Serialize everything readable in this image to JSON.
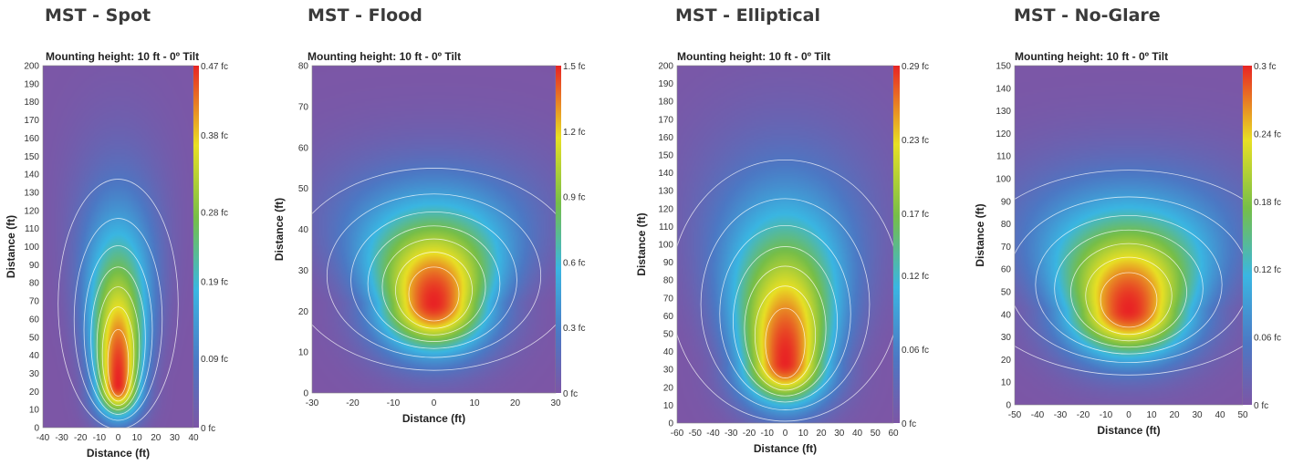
{
  "chart_data": [
    {
      "type": "heatmap",
      "title": "MST - Spot",
      "subtitle": "Mounting height: 10 ft - 0º Tilt",
      "xlabel": "Distance (ft)",
      "ylabel": "Distance (ft)",
      "xlim": [
        -40,
        40
      ],
      "ylim": [
        0,
        200
      ],
      "x_ticks": [
        -40,
        -30,
        -20,
        -10,
        0,
        10,
        20,
        30,
        40
      ],
      "y_ticks": [
        0,
        10,
        20,
        30,
        40,
        50,
        60,
        70,
        80,
        90,
        100,
        110,
        120,
        130,
        140,
        150,
        160,
        170,
        180,
        190,
        200
      ],
      "colorbar_labels": [
        "0 fc",
        "0.09 fc",
        "0.19 fc",
        "0.28 fc",
        "0.38 fc",
        "0.47 fc"
      ],
      "colorbar_values": [
        0,
        0.09,
        0.19,
        0.28,
        0.38,
        0.47
      ],
      "peak": {
        "x": 0,
        "y": 24,
        "value": 0.47
      },
      "spread": {
        "sx": 8,
        "sy_below": 12,
        "sy_above": 55
      }
    },
    {
      "type": "heatmap",
      "title": "MST - Flood",
      "subtitle": "Mounting height: 10 ft - 0º Tilt",
      "xlabel": "Distance (ft)",
      "ylabel": "Distance (ft)",
      "xlim": [
        -30,
        30
      ],
      "ylim": [
        0,
        80
      ],
      "x_ticks": [
        -30,
        -20,
        -10,
        0,
        10,
        20,
        30
      ],
      "y_ticks": [
        0,
        10,
        20,
        30,
        40,
        50,
        60,
        70,
        80
      ],
      "colorbar_labels": [
        "0 fc",
        "0.3 fc",
        "0.6 fc",
        "0.9 fc",
        "1.2 fc",
        "1.5 fc"
      ],
      "colorbar_values": [
        0,
        0.3,
        0.6,
        0.9,
        1.2,
        1.5
      ],
      "peak": {
        "x": 0,
        "y": 22,
        "value": 1.5
      },
      "spread": {
        "sx": 9,
        "sy_below": 8,
        "sy_above": 16
      }
    },
    {
      "type": "heatmap",
      "title": "MST - Elliptical",
      "subtitle": "Mounting height: 10 ft - 0º Tilt",
      "xlabel": "Distance (ft)",
      "ylabel": "Distance (ft)",
      "xlim": [
        -60,
        60
      ],
      "ylim": [
        0,
        200
      ],
      "x_ticks": [
        -60,
        -50,
        -40,
        -30,
        -20,
        -10,
        0,
        10,
        20,
        30,
        40,
        50,
        60
      ],
      "y_ticks": [
        0,
        10,
        20,
        30,
        40,
        50,
        60,
        70,
        80,
        90,
        100,
        110,
        120,
        130,
        140,
        150,
        160,
        170,
        180,
        190,
        200
      ],
      "colorbar_labels": [
        "0 fc",
        "0.06 fc",
        "0.12 fc",
        "0.17 fc",
        "0.23 fc",
        "0.29 fc"
      ],
      "colorbar_values": [
        0,
        0.06,
        0.12,
        0.17,
        0.23,
        0.29
      ],
      "peak": {
        "x": 0,
        "y": 34,
        "value": 0.29
      },
      "spread": {
        "sx": 16,
        "sy_below": 16,
        "sy_above": 55
      }
    },
    {
      "type": "heatmap",
      "title": "MST - No-Glare",
      "subtitle": "Mounting height: 10 ft - 0º Tilt",
      "xlabel": "Distance (ft)",
      "ylabel": "Distance (ft)",
      "xlim": [
        -50,
        50
      ],
      "ylim": [
        0,
        150
      ],
      "x_ticks": [
        -50,
        -40,
        -30,
        -20,
        -10,
        0,
        10,
        20,
        30,
        40,
        50
      ],
      "y_ticks": [
        0,
        10,
        20,
        30,
        40,
        50,
        60,
        70,
        80,
        90,
        100,
        110,
        120,
        130,
        140,
        150
      ],
      "colorbar_labels": [
        "0 fc",
        "0.06 fc",
        "0.12 fc",
        "0.18 fc",
        "0.24 fc",
        "0.3 fc"
      ],
      "colorbar_values": [
        0,
        0.06,
        0.12,
        0.18,
        0.24,
        0.3
      ],
      "peak": {
        "x": 0,
        "y": 42,
        "value": 0.3
      },
      "spread": {
        "sx": 18,
        "sy_below": 14,
        "sy_above": 30
      }
    }
  ]
}
